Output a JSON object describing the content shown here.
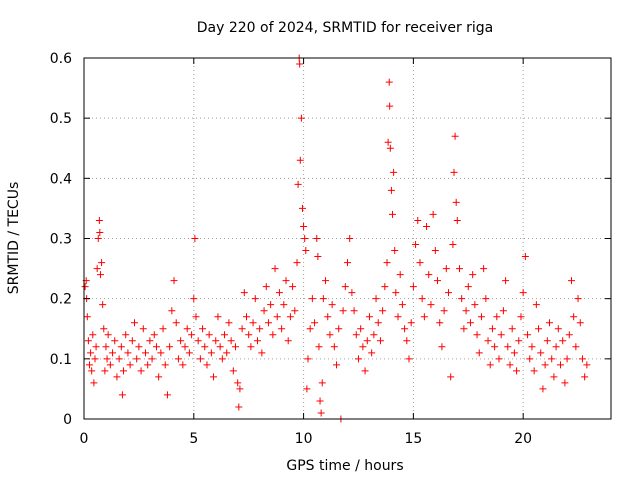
{
  "chart_data": {
    "type": "scatter",
    "title": "Day 220 of 2024, SRMTID for receiver riga",
    "xlabel": "GPS time / hours",
    "ylabel": "SRMTID / TECUs",
    "xlim": [
      0,
      24
    ],
    "ylim": [
      0,
      0.6
    ],
    "x_ticks": [
      0,
      5,
      10,
      15,
      20
    ],
    "x_tick_labels": [
      "0",
      "5",
      "10",
      "15",
      "20"
    ],
    "y_ticks": [
      0,
      0.1,
      0.2,
      0.3,
      0.4,
      0.5,
      0.6
    ],
    "y_tick_labels": [
      "0",
      "0.1",
      "0.2",
      "0.3",
      "0.4",
      "0.5",
      "0.6"
    ],
    "grid": true,
    "marker": "plus",
    "color": "#ff0000",
    "series": [
      {
        "name": "SRMTID",
        "points": [
          [
            0.05,
            0.22
          ],
          [
            0.1,
            0.23
          ],
          [
            0.12,
            0.2
          ],
          [
            0.15,
            0.17
          ],
          [
            0.2,
            0.13
          ],
          [
            0.25,
            0.09
          ],
          [
            0.3,
            0.11
          ],
          [
            0.35,
            0.08
          ],
          [
            0.4,
            0.14
          ],
          [
            0.45,
            0.06
          ],
          [
            0.5,
            0.1
          ],
          [
            0.55,
            0.12
          ],
          [
            0.6,
            0.25
          ],
          [
            0.65,
            0.3
          ],
          [
            0.7,
            0.33
          ],
          [
            0.72,
            0.31
          ],
          [
            0.75,
            0.24
          ],
          [
            0.8,
            0.26
          ],
          [
            0.85,
            0.19
          ],
          [
            0.9,
            0.15
          ],
          [
            0.95,
            0.08
          ],
          [
            1.0,
            0.12
          ],
          [
            1.05,
            0.1
          ],
          [
            1.1,
            0.14
          ],
          [
            1.2,
            0.09
          ],
          [
            1.3,
            0.11
          ],
          [
            1.4,
            0.13
          ],
          [
            1.5,
            0.07
          ],
          [
            1.6,
            0.1
          ],
          [
            1.7,
            0.12
          ],
          [
            1.75,
            0.04
          ],
          [
            1.8,
            0.08
          ],
          [
            1.9,
            0.14
          ],
          [
            2.0,
            0.11
          ],
          [
            2.1,
            0.09
          ],
          [
            2.2,
            0.13
          ],
          [
            2.3,
            0.16
          ],
          [
            2.4,
            0.1
          ],
          [
            2.5,
            0.12
          ],
          [
            2.6,
            0.08
          ],
          [
            2.7,
            0.15
          ],
          [
            2.8,
            0.11
          ],
          [
            2.9,
            0.09
          ],
          [
            3.0,
            0.13
          ],
          [
            3.1,
            0.1
          ],
          [
            3.2,
            0.14
          ],
          [
            3.3,
            0.12
          ],
          [
            3.4,
            0.07
          ],
          [
            3.5,
            0.11
          ],
          [
            3.6,
            0.15
          ],
          [
            3.7,
            0.09
          ],
          [
            3.8,
            0.04
          ],
          [
            3.9,
            0.12
          ],
          [
            4.0,
            0.18
          ],
          [
            4.1,
            0.23
          ],
          [
            4.2,
            0.16
          ],
          [
            4.3,
            0.1
          ],
          [
            4.4,
            0.13
          ],
          [
            4.5,
            0.09
          ],
          [
            4.6,
            0.12
          ],
          [
            4.7,
            0.15
          ],
          [
            4.8,
            0.11
          ],
          [
            4.9,
            0.14
          ],
          [
            5.0,
            0.2
          ],
          [
            5.05,
            0.3
          ],
          [
            5.1,
            0.17
          ],
          [
            5.2,
            0.13
          ],
          [
            5.3,
            0.1
          ],
          [
            5.4,
            0.15
          ],
          [
            5.5,
            0.12
          ],
          [
            5.6,
            0.09
          ],
          [
            5.7,
            0.14
          ],
          [
            5.8,
            0.11
          ],
          [
            5.9,
            0.07
          ],
          [
            6.0,
            0.13
          ],
          [
            6.1,
            0.17
          ],
          [
            6.2,
            0.12
          ],
          [
            6.3,
            0.1
          ],
          [
            6.4,
            0.14
          ],
          [
            6.5,
            0.11
          ],
          [
            6.6,
            0.16
          ],
          [
            6.7,
            0.13
          ],
          [
            6.8,
            0.08
          ],
          [
            6.9,
            0.12
          ],
          [
            7.0,
            0.06
          ],
          [
            7.05,
            0.02
          ],
          [
            7.1,
            0.05
          ],
          [
            7.2,
            0.15
          ],
          [
            7.3,
            0.21
          ],
          [
            7.4,
            0.17
          ],
          [
            7.5,
            0.14
          ],
          [
            7.6,
            0.12
          ],
          [
            7.7,
            0.16
          ],
          [
            7.8,
            0.2
          ],
          [
            7.9,
            0.13
          ],
          [
            8.0,
            0.15
          ],
          [
            8.1,
            0.11
          ],
          [
            8.2,
            0.18
          ],
          [
            8.3,
            0.22
          ],
          [
            8.4,
            0.16
          ],
          [
            8.5,
            0.19
          ],
          [
            8.6,
            0.14
          ],
          [
            8.7,
            0.25
          ],
          [
            8.8,
            0.17
          ],
          [
            8.9,
            0.21
          ],
          [
            9.0,
            0.15
          ],
          [
            9.1,
            0.19
          ],
          [
            9.2,
            0.23
          ],
          [
            9.3,
            0.13
          ],
          [
            9.4,
            0.17
          ],
          [
            9.5,
            0.22
          ],
          [
            9.6,
            0.18
          ],
          [
            9.7,
            0.26
          ],
          [
            9.75,
            0.39
          ],
          [
            9.8,
            0.6
          ],
          [
            9.82,
            0.59
          ],
          [
            9.85,
            0.43
          ],
          [
            9.9,
            0.5
          ],
          [
            9.95,
            0.35
          ],
          [
            10.0,
            0.32
          ],
          [
            10.05,
            0.3
          ],
          [
            10.1,
            0.28
          ],
          [
            10.15,
            0.05
          ],
          [
            10.2,
            0.1
          ],
          [
            10.3,
            0.15
          ],
          [
            10.4,
            0.2
          ],
          [
            10.5,
            0.16
          ],
          [
            10.6,
            0.3
          ],
          [
            10.65,
            0.27
          ],
          [
            10.7,
            0.12
          ],
          [
            10.75,
            0.03
          ],
          [
            10.8,
            0.01
          ],
          [
            10.85,
            0.06
          ],
          [
            10.9,
            0.2
          ],
          [
            11.0,
            0.23
          ],
          [
            11.1,
            0.17
          ],
          [
            11.2,
            0.14
          ],
          [
            11.3,
            0.19
          ],
          [
            11.4,
            0.12
          ],
          [
            11.5,
            0.09
          ],
          [
            11.6,
            0.15
          ],
          [
            11.7,
            0.0
          ],
          [
            11.8,
            0.18
          ],
          [
            11.9,
            0.22
          ],
          [
            12.0,
            0.26
          ],
          [
            12.1,
            0.3
          ],
          [
            12.2,
            0.21
          ],
          [
            12.3,
            0.18
          ],
          [
            12.4,
            0.14
          ],
          [
            12.5,
            0.1
          ],
          [
            12.6,
            0.15
          ],
          [
            12.7,
            0.12
          ],
          [
            12.8,
            0.08
          ],
          [
            12.9,
            0.13
          ],
          [
            13.0,
            0.17
          ],
          [
            13.1,
            0.11
          ],
          [
            13.2,
            0.14
          ],
          [
            13.3,
            0.2
          ],
          [
            13.4,
            0.16
          ],
          [
            13.5,
            0.13
          ],
          [
            13.6,
            0.18
          ],
          [
            13.7,
            0.22
          ],
          [
            13.8,
            0.26
          ],
          [
            13.85,
            0.46
          ],
          [
            13.9,
            0.56
          ],
          [
            13.92,
            0.52
          ],
          [
            13.95,
            0.45
          ],
          [
            14.0,
            0.38
          ],
          [
            14.05,
            0.34
          ],
          [
            14.1,
            0.41
          ],
          [
            14.15,
            0.28
          ],
          [
            14.2,
            0.21
          ],
          [
            14.3,
            0.17
          ],
          [
            14.4,
            0.24
          ],
          [
            14.5,
            0.19
          ],
          [
            14.6,
            0.15
          ],
          [
            14.7,
            0.13
          ],
          [
            14.8,
            0.1
          ],
          [
            14.9,
            0.16
          ],
          [
            15.0,
            0.22
          ],
          [
            15.1,
            0.29
          ],
          [
            15.2,
            0.33
          ],
          [
            15.3,
            0.26
          ],
          [
            15.4,
            0.2
          ],
          [
            15.5,
            0.17
          ],
          [
            15.6,
            0.32
          ],
          [
            15.7,
            0.24
          ],
          [
            15.8,
            0.19
          ],
          [
            15.9,
            0.34
          ],
          [
            16.0,
            0.28
          ],
          [
            16.1,
            0.23
          ],
          [
            16.2,
            0.16
          ],
          [
            16.3,
            0.12
          ],
          [
            16.4,
            0.18
          ],
          [
            16.5,
            0.25
          ],
          [
            16.6,
            0.21
          ],
          [
            16.7,
            0.07
          ],
          [
            16.8,
            0.29
          ],
          [
            16.85,
            0.41
          ],
          [
            16.9,
            0.47
          ],
          [
            16.95,
            0.36
          ],
          [
            17.0,
            0.33
          ],
          [
            17.1,
            0.25
          ],
          [
            17.2,
            0.2
          ],
          [
            17.3,
            0.15
          ],
          [
            17.4,
            0.18
          ],
          [
            17.5,
            0.22
          ],
          [
            17.6,
            0.16
          ],
          [
            17.7,
            0.24
          ],
          [
            17.8,
            0.19
          ],
          [
            17.9,
            0.14
          ],
          [
            18.0,
            0.11
          ],
          [
            18.1,
            0.17
          ],
          [
            18.2,
            0.25
          ],
          [
            18.3,
            0.2
          ],
          [
            18.4,
            0.13
          ],
          [
            18.5,
            0.09
          ],
          [
            18.6,
            0.15
          ],
          [
            18.7,
            0.12
          ],
          [
            18.8,
            0.17
          ],
          [
            18.9,
            0.1
          ],
          [
            19.0,
            0.14
          ],
          [
            19.1,
            0.18
          ],
          [
            19.2,
            0.23
          ],
          [
            19.3,
            0.12
          ],
          [
            19.4,
            0.09
          ],
          [
            19.5,
            0.15
          ],
          [
            19.6,
            0.11
          ],
          [
            19.7,
            0.08
          ],
          [
            19.8,
            0.13
          ],
          [
            19.9,
            0.17
          ],
          [
            20.0,
            0.21
          ],
          [
            20.1,
            0.27
          ],
          [
            20.2,
            0.14
          ],
          [
            20.3,
            0.1
          ],
          [
            20.4,
            0.12
          ],
          [
            20.5,
            0.08
          ],
          [
            20.6,
            0.19
          ],
          [
            20.7,
            0.15
          ],
          [
            20.8,
            0.11
          ],
          [
            20.9,
            0.05
          ],
          [
            21.0,
            0.09
          ],
          [
            21.1,
            0.13
          ],
          [
            21.2,
            0.16
          ],
          [
            21.3,
            0.1
          ],
          [
            21.4,
            0.07
          ],
          [
            21.5,
            0.12
          ],
          [
            21.6,
            0.15
          ],
          [
            21.7,
            0.09
          ],
          [
            21.8,
            0.13
          ],
          [
            21.9,
            0.06
          ],
          [
            22.0,
            0.1
          ],
          [
            22.1,
            0.14
          ],
          [
            22.2,
            0.23
          ],
          [
            22.3,
            0.17
          ],
          [
            22.4,
            0.12
          ],
          [
            22.5,
            0.2
          ],
          [
            22.6,
            0.16
          ],
          [
            22.7,
            0.1
          ],
          [
            22.8,
            0.07
          ],
          [
            22.9,
            0.09
          ]
        ]
      }
    ]
  }
}
